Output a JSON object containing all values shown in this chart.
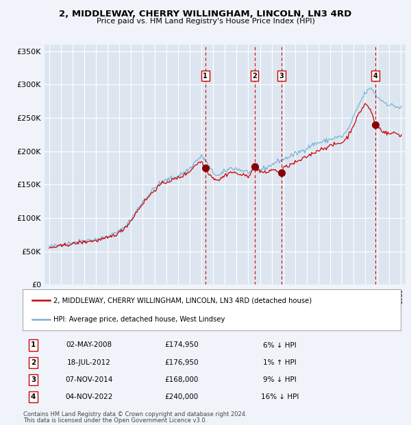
{
  "title": "2, MIDDLEWAY, CHERRY WILLINGHAM, LINCOLN, LN3 4RD",
  "subtitle": "Price paid vs. HM Land Registry's House Price Index (HPI)",
  "legend_line1": "2, MIDDLEWAY, CHERRY WILLINGHAM, LINCOLN, LN3 4RD (detached house)",
  "legend_line2": "HPI: Average price, detached house, West Lindsey",
  "footnote1": "Contains HM Land Registry data © Crown copyright and database right 2024.",
  "footnote2": "This data is licensed under the Open Government Licence v3.0.",
  "transactions": [
    {
      "num": 1,
      "date": "02-MAY-2008",
      "date_val": 2008.34,
      "price": 174950,
      "pct": "6%",
      "dir": "↓"
    },
    {
      "num": 2,
      "date": "18-JUL-2012",
      "date_val": 2012.54,
      "price": 176950,
      "pct": "1%",
      "dir": "↑"
    },
    {
      "num": 3,
      "date": "07-NOV-2014",
      "date_val": 2014.85,
      "price": 168000,
      "pct": "9%",
      "dir": "↓"
    },
    {
      "num": 4,
      "date": "04-NOV-2022",
      "date_val": 2022.84,
      "price": 240000,
      "pct": "16%",
      "dir": "↓"
    }
  ],
  "background_color": "#f0f4fa",
  "plot_bg_color": "#dde6f0",
  "grid_color": "#ffffff",
  "hpi_color": "#7ab3d4",
  "price_color": "#cc0000",
  "dot_color": "#8b0000",
  "vline_color": "#cc0000",
  "ylim": [
    0,
    360000
  ],
  "yticks": [
    0,
    50000,
    100000,
    150000,
    200000,
    250000,
    300000,
    350000
  ],
  "xlim_start": 1994.6,
  "xlim_end": 2025.4
}
